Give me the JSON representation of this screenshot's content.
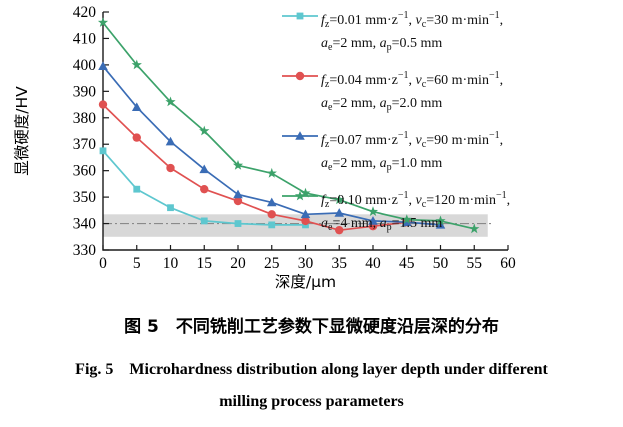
{
  "figure": {
    "caption_cn": "图 5　不同铣削工艺参数下显微硬度沿层深的分布",
    "caption_en_line1": "Fig. 5　Microhardness distribution along layer depth under different",
    "caption_en_line2": "milling process parameters"
  },
  "chart_data": {
    "type": "line",
    "title": "",
    "xlabel": "深度/μm",
    "ylabel": "显微硬度/HV",
    "xlim": [
      0,
      60
    ],
    "xtick_step": 5,
    "ylim": [
      330,
      420
    ],
    "ytick_step": 10,
    "grid": false,
    "legend_position": "top-right",
    "axis_color": "#1a1a1a",
    "baseline_band": {
      "ymin": 335,
      "ymax": 343.5,
      "xmin": 0,
      "xmax": 57,
      "color": "#d8d8d8"
    },
    "baseline_line": {
      "y": 340,
      "xmin": 0,
      "xmax": 57.5,
      "style": "dash-dot",
      "color": "#8a8a8a"
    },
    "series": [
      {
        "name": "fz=0.01 mm/z, vc=30 m/min, ae=2 mm, ap=0.5 mm",
        "legend_line1": "*f*_{z}=0.01 mm·z^{−1}, *v*_{c}=30 m·min^{−1},",
        "legend_line2": "*a*_{e}=2 mm, *a*_{p}=0.5 mm",
        "marker": "square",
        "color": "#5ec7cf",
        "x": [
          0,
          5,
          10,
          15,
          20,
          25,
          30
        ],
        "values": [
          367.5,
          353,
          346,
          341,
          340,
          339.5,
          339.5
        ]
      },
      {
        "name": "fz=0.04 mm/z, vc=60 m/min, ae=2 mm, ap=2.0 mm",
        "legend_line1": "*f*_{z}=0.04 mm·z^{−1}, *v*_{c}=60 m·min^{−1},",
        "legend_line2": "*a*_{e}=2 mm, *a*_{p}=2.0 mm",
        "marker": "circle",
        "color": "#e05151",
        "x": [
          0,
          5,
          10,
          15,
          20,
          25,
          30,
          35,
          40,
          45
        ],
        "values": [
          385,
          372.5,
          361,
          353,
          348.5,
          343.5,
          341,
          337.5,
          339,
          340.5
        ]
      },
      {
        "name": "fz=0.07 mm/z, vc=90 m/min, ae=2 mm, ap=1.0 mm",
        "legend_line1": "*f*_{z}=0.07 mm·z^{−1}, *v*_{c}=90 m·min^{−1},",
        "legend_line2": "*a*_{e}=2 mm, *a*_{p}=1.0 mm",
        "marker": "triangle",
        "color": "#3a6cb5",
        "x": [
          0,
          5,
          10,
          15,
          20,
          25,
          30,
          35,
          40,
          45,
          50
        ],
        "values": [
          399.5,
          384,
          371,
          360.5,
          351,
          348,
          343.5,
          344,
          341,
          340.5,
          339.5
        ]
      },
      {
        "name": "fz=0.10 mm/z, vc=120 m/min, ae=4 mm, ap=1.5 mm",
        "legend_line1": "*f*_{z}=0.10 mm·z^{−1}, *v*_{c}=120 m·min^{−1},",
        "legend_line2": "*a*_{e}=4 mm, *a*_{p}=1.5 mm",
        "marker": "star",
        "color": "#3ca26a",
        "x": [
          0,
          5,
          10,
          15,
          20,
          25,
          30,
          35,
          40,
          45,
          50,
          55
        ],
        "values": [
          416,
          400,
          386,
          375,
          362,
          359,
          351.5,
          349,
          344.5,
          341.5,
          341,
          338
        ]
      }
    ]
  }
}
